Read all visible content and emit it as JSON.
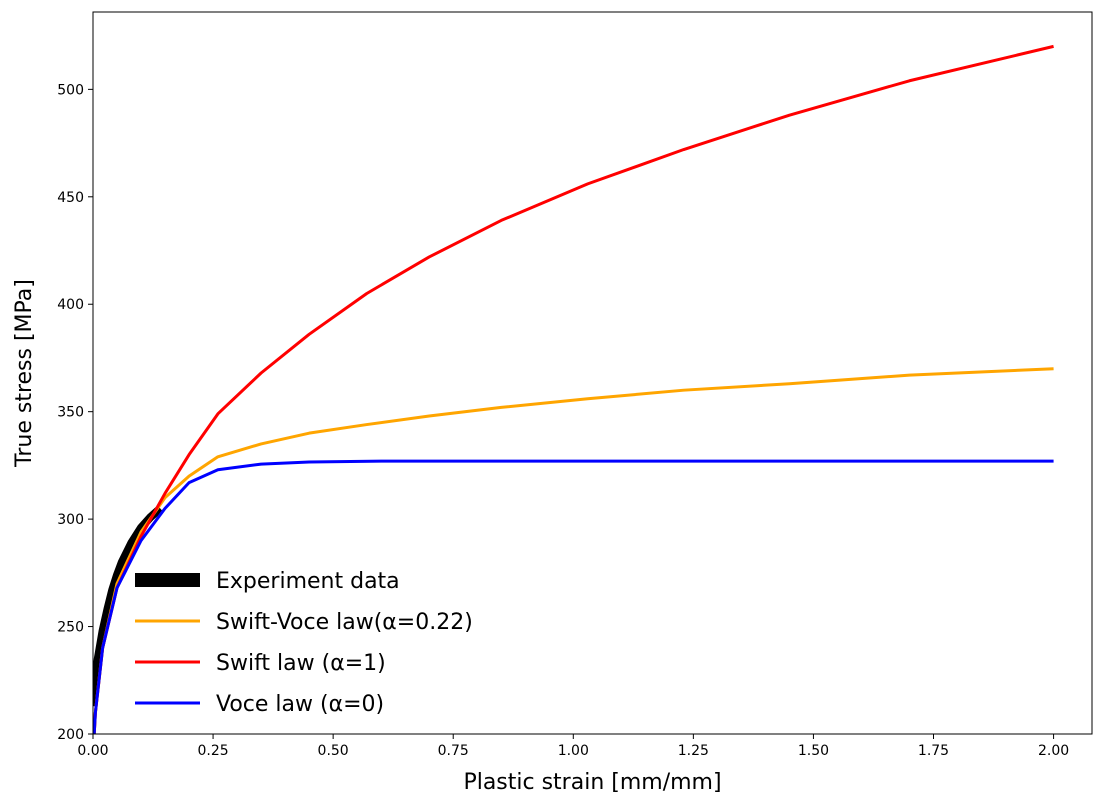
{
  "chart_data": {
    "type": "line",
    "xlabel": "Plastic strain [mm/mm]",
    "ylabel": "True stress [MPa]",
    "xlim": [
      0.0,
      2.08
    ],
    "ylim": [
      200,
      536
    ],
    "x_ticks": [
      "0.00",
      "0.25",
      "0.50",
      "0.75",
      "1.00",
      "1.25",
      "1.50",
      "1.75",
      "2.00"
    ],
    "y_ticks": [
      "200",
      "250",
      "300",
      "350",
      "400",
      "450",
      "500"
    ],
    "grid": false,
    "legend_position": "lower-left",
    "series": [
      {
        "name": "Experiment data",
        "color": "#000000",
        "style": "thick",
        "x": [
          0.0,
          0.005,
          0.01,
          0.02,
          0.03,
          0.04,
          0.05,
          0.06,
          0.08,
          0.1,
          0.12,
          0.14
        ],
        "y": [
          213,
          225,
          235,
          248,
          258,
          267,
          274,
          280,
          289,
          296,
          301,
          305
        ]
      },
      {
        "name": "Swift-Voce law(α=0.22)",
        "color": "#ffa500",
        "x": [
          0.0,
          0.005,
          0.02,
          0.05,
          0.1,
          0.15,
          0.2,
          0.26,
          0.35,
          0.45,
          0.57,
          0.7,
          0.85,
          1.03,
          1.23,
          1.45,
          1.7,
          2.0
        ],
        "y": [
          190,
          210,
          240,
          270,
          294,
          310,
          320,
          329,
          335,
          340,
          344,
          348,
          352,
          356,
          360,
          363,
          367,
          370
        ]
      },
      {
        "name": "Swift law (α=1)",
        "color": "#ff0000",
        "x": [
          0.0,
          0.005,
          0.02,
          0.05,
          0.1,
          0.15,
          0.2,
          0.26,
          0.35,
          0.45,
          0.57,
          0.7,
          0.85,
          1.03,
          1.23,
          1.45,
          1.7,
          2.0
        ],
        "y": [
          190,
          210,
          240,
          268,
          292,
          312,
          330,
          349,
          368,
          386,
          405,
          422,
          439,
          456,
          472,
          488,
          504,
          520
        ]
      },
      {
        "name": "Voce law (α=0)",
        "color": "#0000ff",
        "x": [
          0.0,
          0.005,
          0.02,
          0.05,
          0.1,
          0.15,
          0.2,
          0.26,
          0.35,
          0.45,
          0.6,
          0.8,
          1.0,
          1.5,
          2.0
        ],
        "y": [
          190,
          210,
          240,
          268,
          290,
          305,
          317,
          323,
          325.6,
          326.6,
          327,
          327,
          327,
          327,
          327
        ]
      }
    ]
  },
  "legend": {
    "items": [
      {
        "label": "Experiment data",
        "color": "#000000",
        "thick": true
      },
      {
        "label": "Swift-Voce law(α=0.22)",
        "color": "#ffa500",
        "thick": false
      },
      {
        "label": "Swift law (α=1)",
        "color": "#ff0000",
        "thick": false
      },
      {
        "label": "Voce law (α=0)",
        "color": "#0000ff",
        "thick": false
      }
    ]
  }
}
